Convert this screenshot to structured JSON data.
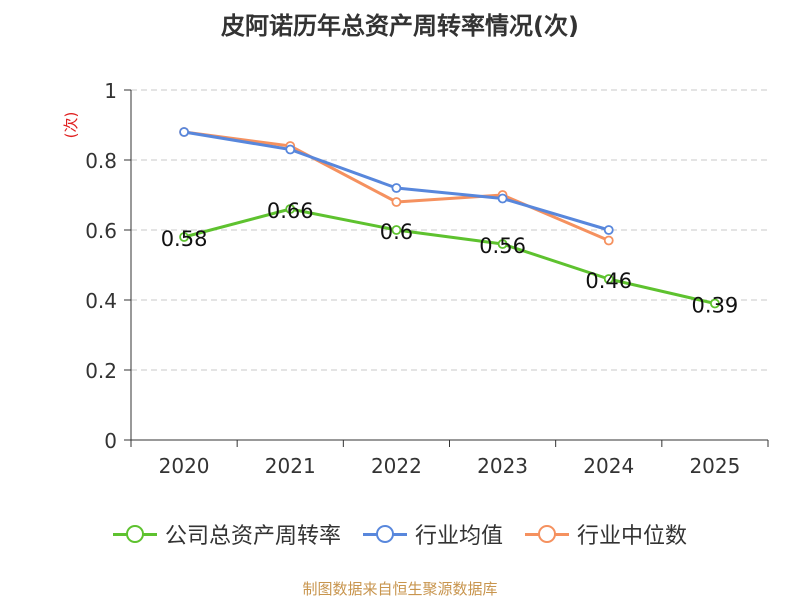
{
  "chart_data": {
    "type": "line",
    "title": "皮阿诺历年总资产周转率情况(次)",
    "ylabel": "(次)",
    "xlabel": "",
    "categories": [
      "2020",
      "2021",
      "2022",
      "2023",
      "2024",
      "2025"
    ],
    "ylim": [
      0,
      1
    ],
    "yticks": [
      0,
      0.2,
      0.4,
      0.6,
      0.8,
      1
    ],
    "ytick_labels": [
      "0",
      "0.2",
      "0.4",
      "0.6",
      "0.8",
      "1"
    ],
    "grid": true,
    "legend_position": "bottom",
    "series": [
      {
        "name": "公司总资产周转率",
        "color": "#5ec22f",
        "values": [
          0.58,
          0.66,
          0.6,
          0.56,
          0.46,
          0.39
        ],
        "labels": [
          "0.58",
          "0.66",
          "0.6",
          "0.56",
          "0.46",
          "0.39"
        ]
      },
      {
        "name": "行业均值",
        "color": "#5887dc",
        "values": [
          0.88,
          0.83,
          0.72,
          0.69,
          0.6,
          null
        ]
      },
      {
        "name": "行业中位数",
        "color": "#f5915f",
        "values": [
          0.88,
          0.84,
          0.68,
          0.7,
          0.57,
          null
        ]
      }
    ]
  },
  "footer": "制图数据来自恒生聚源数据库"
}
